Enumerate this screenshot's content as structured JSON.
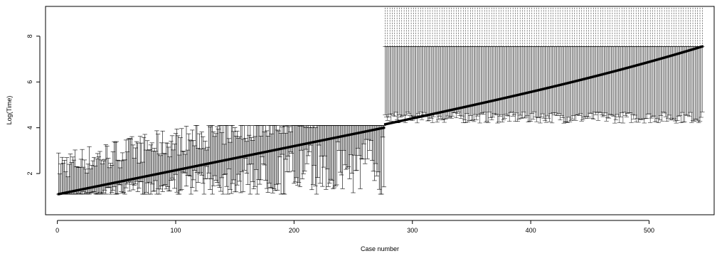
{
  "chart_data": {
    "type": "scatter",
    "title": "",
    "xlabel": "Case number",
    "ylabel": "Log(Time)",
    "xlim": [
      -10,
      555
    ],
    "ylim": [
      0.2,
      9.3
    ],
    "x_ticks": [
      0,
      100,
      200,
      300,
      400,
      500
    ],
    "x_tick_labels": [
      "0",
      "100",
      "200",
      "300",
      "400",
      "500"
    ],
    "y_ticks": [
      2,
      4,
      6,
      8
    ],
    "y_tick_labels": [
      "2",
      "4",
      "6",
      "8"
    ],
    "grid": false,
    "n_cases": 545,
    "observed_segment": {
      "x_range": [
        1,
        276
      ],
      "center_start": 1.1,
      "center_end": 4.0,
      "interval_lower_range": [
        1.1,
        4.0
      ],
      "interval_upper_range": [
        2.5,
        4.1
      ]
    },
    "censored_segment": {
      "x_range": [
        277,
        545
      ],
      "center_start": 4.15,
      "center_end": 7.55,
      "interval_lower_range": [
        4.2,
        4.7
      ],
      "interval_upper": 7.55,
      "dashed_extension_to": 9.3
    },
    "colors": {
      "line": "#000000",
      "background": "#ffffff"
    }
  }
}
